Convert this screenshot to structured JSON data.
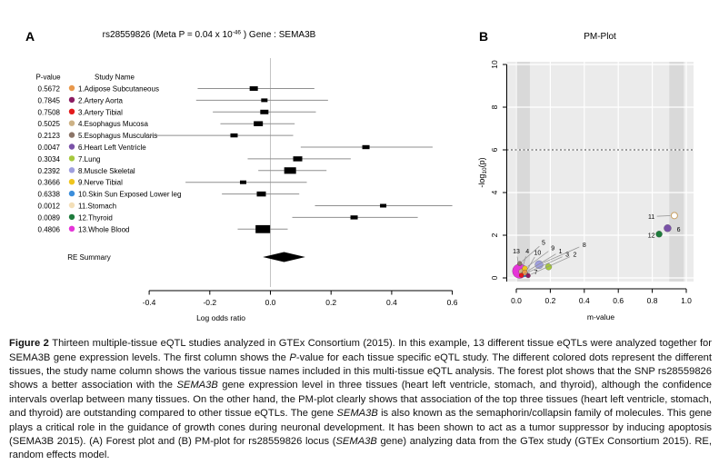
{
  "figure": {
    "panel_a_label": "A",
    "panel_b_label": "B"
  },
  "chart_data": [
    {
      "type": "forest",
      "panel": "A",
      "title_prefix": "rs28559826  (Meta P = 0.04 x 10",
      "title_exponent": "-46",
      "title_suffix": " )   Gene : SEMA3B",
      "columns": {
        "p_value": "P-value",
        "study_name": "Study Name"
      },
      "xlabel": "Log odds ratio",
      "xlim": [
        -0.4,
        0.6
      ],
      "xticks": [
        "-0.4",
        "-0.2",
        "0.0",
        "0.2",
        "0.4",
        "0.6"
      ],
      "studies": [
        {
          "id": 1,
          "p_value": "0.5672",
          "name": "1.Adipose Subcutaneous",
          "color": "#E8984C",
          "est": -0.055,
          "ci": [
            -0.24,
            0.145
          ],
          "weight": 9
        },
        {
          "id": 2,
          "p_value": "0.7845",
          "name": "2.Artery Aorta",
          "color": "#8B1C62",
          "est": -0.02,
          "ci": [
            -0.245,
            0.19
          ],
          "weight": 7
        },
        {
          "id": 3,
          "p_value": "0.7508",
          "name": "3.Artery Tibial",
          "color": "#E31A1C",
          "est": -0.02,
          "ci": [
            -0.19,
            0.15
          ],
          "weight": 9
        },
        {
          "id": 4,
          "p_value": "0.5025",
          "name": "4.Esophagus Mucosa",
          "color": "#CDB286",
          "est": -0.04,
          "ci": [
            -0.165,
            0.08
          ],
          "weight": 10
        },
        {
          "id": 5,
          "p_value": "0.2123",
          "name": "5.Esophagus Muscularis",
          "color": "#8B7568",
          "est": -0.12,
          "ci": [
            -0.42,
            0.075
          ],
          "weight": 8
        },
        {
          "id": 6,
          "p_value": "0.0047",
          "name": "6.Heart Left Ventricle",
          "color": "#7A52A8",
          "est": 0.315,
          "ci": [
            0.1,
            0.535
          ],
          "weight": 8
        },
        {
          "id": 7,
          "p_value": "0.3034",
          "name": "7.Lung",
          "color": "#A6C83E",
          "est": 0.09,
          "ci": [
            -0.075,
            0.265
          ],
          "weight": 10
        },
        {
          "id": 8,
          "p_value": "0.2392",
          "name": "8.Muscle Skeletal",
          "color": "#9F9FDE",
          "est": 0.065,
          "ci": [
            -0.04,
            0.185
          ],
          "weight": 13
        },
        {
          "id": 9,
          "p_value": "0.3666",
          "name": "9.Nerve Tibial",
          "color": "#EFC51E",
          "est": -0.09,
          "ci": [
            -0.28,
            0.12
          ],
          "weight": 7
        },
        {
          "id": 10,
          "p_value": "0.6338",
          "name": "10.Skin Sun Exposed Lower leg",
          "color": "#3C8EDB",
          "est": -0.03,
          "ci": [
            -0.16,
            0.095
          ],
          "weight": 10
        },
        {
          "id": 11,
          "p_value": "0.0012",
          "name": "11.Stomach",
          "color": "#F3DFB8",
          "est": 0.372,
          "ci": [
            0.147,
            0.6
          ],
          "weight": 7
        },
        {
          "id": 12,
          "p_value": "0.0089",
          "name": "12.Thyroid",
          "color": "#1E7B3C",
          "est": 0.276,
          "ci": [
            0.072,
            0.486
          ],
          "weight": 8
        },
        {
          "id": 13,
          "p_value": "0.4806",
          "name": "13.Whole Blood",
          "color": "#E535D8",
          "est": -0.025,
          "ci": [
            -0.108,
            0.057
          ],
          "weight": 16
        }
      ],
      "re_summary": {
        "label": "RE Summary",
        "est": 0.045,
        "ci": [
          -0.025,
          0.115
        ]
      }
    },
    {
      "type": "scatter",
      "panel": "B",
      "title": "PM-Plot",
      "xlabel": "m-value",
      "ylabel_parts": {
        "pre": "-log",
        "sub": "10",
        "post": "(p)"
      },
      "xlim": [
        0,
        1
      ],
      "ylim": [
        0,
        10
      ],
      "xticks": [
        "0.0",
        "0.2",
        "0.4",
        "0.6",
        "0.8",
        "1.0"
      ],
      "yticks": [
        "0",
        "2",
        "4",
        "6",
        "8",
        "10"
      ],
      "threshold_y": 6,
      "shaded_m_bands": [
        [
          -0.005,
          0.08
        ],
        [
          0.9,
          0.985
        ]
      ],
      "points": [
        {
          "id": 13,
          "m": 0.02,
          "neg_log10_p": 0.318,
          "r": 8,
          "color": "#E535D8",
          "label_at": [
            0.0,
            1.25
          ],
          "leader": true
        },
        {
          "id": 8,
          "m": 0.134,
          "neg_log10_p": 0.621,
          "r": 4.5,
          "color": "#9F9FDE",
          "label_at": [
            0.4,
            1.55
          ],
          "leader": true
        },
        {
          "id": 7,
          "m": 0.19,
          "neg_log10_p": 0.518,
          "r": 3.5,
          "color": "#A6C83E",
          "label_at": [
            0.115,
            0.28
          ],
          "leader": false
        },
        {
          "id": 5,
          "m": 0.02,
          "neg_log10_p": 0.673,
          "r": 2.5,
          "color": "#8B7568",
          "label_at": [
            0.16,
            1.65
          ],
          "leader": true
        },
        {
          "id": 4,
          "m": 0.03,
          "neg_log10_p": 0.299,
          "r": 3,
          "color": "#CDB286",
          "label_at": [
            0.065,
            1.25
          ],
          "leader": true
        },
        {
          "id": 9,
          "m": 0.05,
          "neg_log10_p": 0.436,
          "r": 3,
          "color": "#EFC51E",
          "label_at": [
            0.215,
            1.4
          ],
          "leader": true
        },
        {
          "id": 10,
          "m": 0.05,
          "neg_log10_p": 0.198,
          "r": 3.5,
          "color": "#3C8EDB",
          "label_at": [
            0.125,
            1.2
          ],
          "leader": true
        },
        {
          "id": 1,
          "m": 0.05,
          "neg_log10_p": 0.246,
          "r": 3,
          "color": "#E8984C",
          "label_at": [
            0.26,
            1.25
          ],
          "leader": true
        },
        {
          "id": 2,
          "m": 0.07,
          "neg_log10_p": 0.105,
          "r": 2.5,
          "color": "#8B1C62",
          "label_at": [
            0.345,
            1.1
          ],
          "leader": true
        },
        {
          "id": 3,
          "m": 0.03,
          "neg_log10_p": 0.124,
          "r": 2.5,
          "color": "#E31A1C",
          "label_at": [
            0.3,
            1.1
          ],
          "leader": true
        },
        {
          "id": 12,
          "m": 0.84,
          "neg_log10_p": 2.051,
          "r": 3.5,
          "color": "#1E7B3C",
          "label_at": [
            0.795,
            2.0
          ],
          "leader": false
        },
        {
          "id": 6,
          "m": 0.89,
          "neg_log10_p": 2.328,
          "r": 4,
          "color": "#7A52A8",
          "label_at": [
            0.955,
            2.28
          ],
          "leader": false
        },
        {
          "id": 11,
          "m": 0.93,
          "neg_log10_p": 2.921,
          "r": 3.5,
          "color": "#C8A165",
          "open": true,
          "label_at": [
            0.795,
            2.88
          ],
          "leader": true
        }
      ]
    }
  ],
  "caption": {
    "segments": [
      {
        "t": "Figure 2  ",
        "b": true
      },
      {
        "t": "Thirteen multiple-tissue eQTL studies analyzed in GTEx Consortium (2015). In this example, 13 different tissue eQTLs were analyzed together for SEMA3B gene expression levels. The first column shows the "
      },
      {
        "t": "P",
        "i": true
      },
      {
        "t": "-value for each tissue specific eQTL study. The different colored dots represent the different tissues, the study name column shows the various tissue names included in this multi-tissue eQTL analysis. The forest plot shows that the SNP rs28559826 shows a better association with the "
      },
      {
        "t": "SEMA3B",
        "i": true
      },
      {
        "t": " gene expression level in three tissues (heart left ventricle, stomach, and thyroid), although the confidence intervals overlap between many tissues. On the other hand, the PM-plot clearly shows that association of the top three tissues (heart left ventricle, stomach, and thyroid) are outstanding compared to other tissue eQTLs. The gene "
      },
      {
        "t": "SEMA3B",
        "i": true
      },
      {
        "t": " is also known as the semaphorin/collapsin family of molecules. This gene plays a critical role in the guidance of growth cones during neuronal development. It has been shown to act as a tumor suppressor by inducing apoptosis (SEMA3B 2015). (A) Forest plot and (B) PM-plot for rs28559826 locus ("
      },
      {
        "t": "SEMA3B",
        "i": true
      },
      {
        "t": " gene) analyzing data from the GTex study (GTEx Consortium 2015). RE, random effects model."
      }
    ]
  }
}
